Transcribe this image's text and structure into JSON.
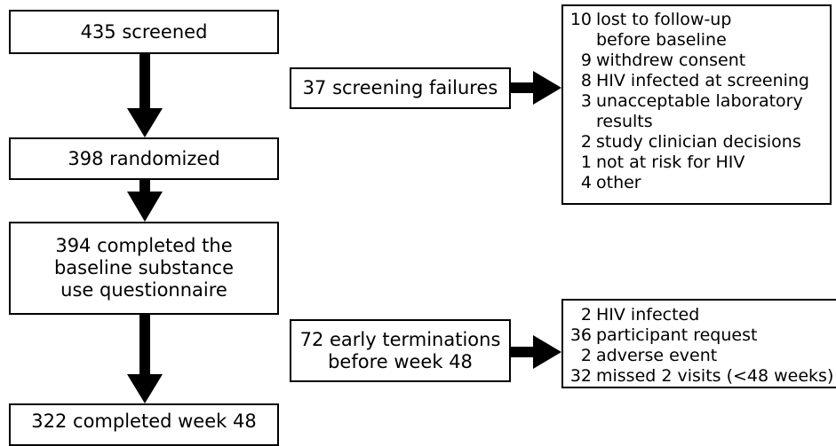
{
  "nodes": [
    {
      "label": [
        "435 screened"
      ]
    },
    {
      "label": [
        "398 randomized"
      ]
    },
    {
      "label": [
        "394 completed the",
        "baseline substance",
        "use questionnaire"
      ]
    },
    {
      "label": [
        "322 completed week 48"
      ]
    },
    {
      "label": [
        "37 screening failures"
      ]
    },
    {
      "label": [
        "72 early terminations",
        "before week 48"
      ]
    }
  ],
  "screening_failure_reasons": [
    {
      "count": 10,
      "lines": [
        "lost to follow-up",
        "before baseline"
      ]
    },
    {
      "count": 9,
      "lines": [
        "withdrew consent"
      ]
    },
    {
      "count": 8,
      "lines": [
        "HIV infected at screening"
      ]
    },
    {
      "count": 3,
      "lines": [
        "unacceptable laboratory",
        "results"
      ]
    },
    {
      "count": 2,
      "lines": [
        "study clinician decisions"
      ]
    },
    {
      "count": 1,
      "lines": [
        "not at risk for HIV"
      ]
    },
    {
      "count": 4,
      "lines": [
        "other"
      ]
    }
  ],
  "early_termination_reasons": [
    {
      "count": 2,
      "lines": [
        "HIV infected"
      ]
    },
    {
      "count": 36,
      "lines": [
        "participant request"
      ]
    },
    {
      "count": 2,
      "lines": [
        "adverse event"
      ]
    },
    {
      "count": 32,
      "lines": [
        "missed 2 visits (<48 weeks)"
      ]
    }
  ]
}
